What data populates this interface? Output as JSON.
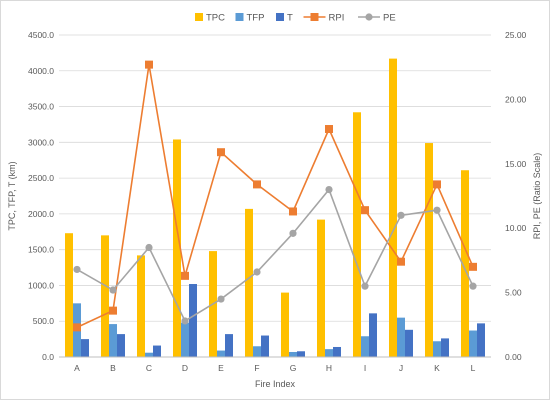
{
  "chart_data": {
    "type": "bar",
    "title": "",
    "xlabel": "Fire Index",
    "ylabel": "TPC, TFP, T (km)",
    "y2label": "RPI, PE (Ratio Scale)",
    "ylim": [
      0,
      4500
    ],
    "y2lim": [
      0,
      25
    ],
    "y_ticks": [
      "0.0",
      "500.0",
      "1000.0",
      "1500.0",
      "2000.0",
      "2500.0",
      "3000.0",
      "3500.0",
      "4000.0",
      "4500.0"
    ],
    "y2_ticks": [
      "0.00",
      "5.00",
      "10.00",
      "15.00",
      "20.00",
      "25.00"
    ],
    "grid": true,
    "legend_position": "top",
    "categories": [
      "A",
      "B",
      "C",
      "D",
      "E",
      "F",
      "G",
      "H",
      "I",
      "J",
      "K",
      "L"
    ],
    "series": [
      {
        "name": "TPC",
        "type": "bar",
        "axis": "left",
        "color": "#FFC000",
        "values": [
          1730,
          1700,
          1420,
          3040,
          1480,
          2070,
          900,
          1920,
          3420,
          4170,
          2990,
          2610
        ]
      },
      {
        "name": "TFP",
        "type": "bar",
        "axis": "left",
        "color": "#5B9BD5",
        "values": [
          750,
          460,
          60,
          480,
          90,
          150,
          70,
          110,
          290,
          550,
          220,
          370
        ]
      },
      {
        "name": "T",
        "type": "bar",
        "axis": "left",
        "color": "#4472C4",
        "values": [
          250,
          320,
          160,
          1020,
          320,
          300,
          80,
          140,
          610,
          380,
          260,
          470
        ]
      },
      {
        "name": "RPI",
        "type": "line",
        "axis": "right",
        "color": "#ED7D31",
        "marker": "square",
        "values": [
          2.3,
          3.6,
          22.7,
          6.3,
          15.9,
          13.4,
          11.3,
          17.7,
          11.4,
          7.4,
          13.4,
          7.0
        ]
      },
      {
        "name": "PE",
        "type": "line",
        "axis": "right",
        "color": "#A5A5A5",
        "marker": "circle",
        "values": [
          6.8,
          5.2,
          8.5,
          2.8,
          4.5,
          6.6,
          9.6,
          13.0,
          5.5,
          11.0,
          11.4,
          5.5
        ]
      }
    ]
  }
}
